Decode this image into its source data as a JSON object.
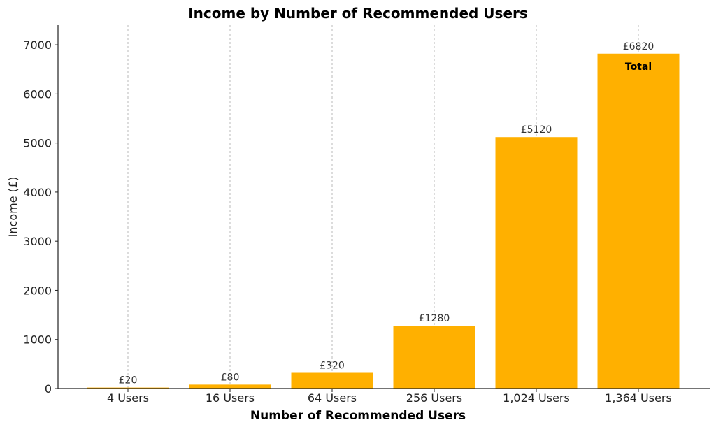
{
  "chart_data": {
    "type": "bar",
    "title": "Income by Number of Recommended Users",
    "xlabel": "Number of Recommended Users",
    "ylabel": "Income (£)",
    "categories": [
      "4 Users",
      "16 Users",
      "64 Users",
      "256 Users",
      "1,024 Users",
      "1,364 Users"
    ],
    "values": [
      20,
      80,
      320,
      1280,
      5120,
      6820
    ],
    "data_labels": [
      "£20",
      "£80",
      "£320",
      "£1280",
      "£5120",
      "£6820"
    ],
    "annotations": [
      {
        "category": "1,364 Users",
        "text": "Total"
      }
    ],
    "ylim": [
      0,
      7400
    ],
    "yticks": [
      0,
      1000,
      2000,
      3000,
      4000,
      5000,
      6000,
      7000
    ],
    "grid": "vertical-dashed",
    "bar_color": "#FFB000"
  }
}
